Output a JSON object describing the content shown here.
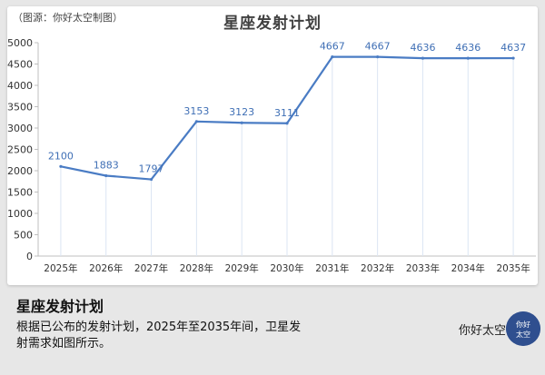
{
  "source_note": "（图源：你好太空制图）",
  "chart_data": {
    "type": "line",
    "title": "星座发射计划",
    "categories": [
      "2025年",
      "2026年",
      "2027年",
      "2028年",
      "2029年",
      "2030年",
      "2031年",
      "2032年",
      "2033年",
      "2034年",
      "2035年"
    ],
    "series": [
      {
        "values": [
          2100,
          1883,
          1797,
          3153,
          3123,
          3111,
          4667,
          4667,
          4636,
          4636,
          4637
        ]
      }
    ],
    "ylim": [
      0,
      5000
    ],
    "yticks": [
      0,
      500,
      1000,
      1500,
      2000,
      2500,
      3000,
      3500,
      4000,
      4500,
      5000
    ],
    "xlabel": "",
    "ylabel": "",
    "grid": false,
    "drop_lines": true,
    "data_labels": true,
    "line_color": "#4a7cc4"
  },
  "footer": {
    "title": "星座发射计划",
    "description": "根据已公布的发射计划，2025年至2035年间，卫星发射需求如图所示。",
    "brand_name": "你好太空",
    "brand_logo_text": "你好\n太空"
  }
}
